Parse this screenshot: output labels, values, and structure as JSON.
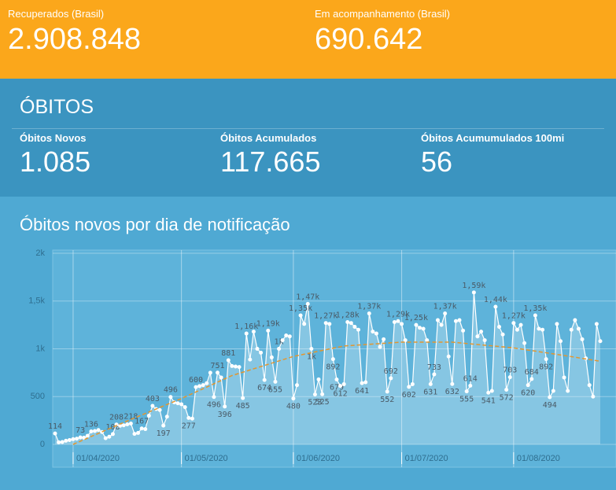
{
  "cards": [
    {
      "label": "Recuperados (Brasil)",
      "value": "2.908.848"
    },
    {
      "label": "Em acompanhamento (Brasil)",
      "value": "690.642"
    }
  ],
  "section": {
    "title": "ÓBITOS",
    "stats": [
      {
        "label": "Óbitos Novos",
        "value": "1.085"
      },
      {
        "label": "Óbitos Acumulados",
        "value": "117.665"
      },
      {
        "label": "Óbitos Acumumulados 100mi",
        "value": "56"
      }
    ]
  },
  "chart_data": {
    "type": "line",
    "title": "Óbitos novos por dia de notificação",
    "x": [
      "27/03/2020",
      "28/03/2020",
      "29/03/2020",
      "30/03/2020",
      "31/03/2020",
      "01/04/2020",
      "02/04/2020",
      "03/04/2020",
      "04/04/2020",
      "05/04/2020",
      "06/04/2020",
      "07/04/2020",
      "08/04/2020",
      "09/04/2020",
      "10/04/2020",
      "11/04/2020",
      "12/04/2020",
      "13/04/2020",
      "14/04/2020",
      "15/04/2020",
      "16/04/2020",
      "17/04/2020",
      "18/04/2020",
      "19/04/2020",
      "20/04/2020",
      "21/04/2020",
      "22/04/2020",
      "23/04/2020",
      "24/04/2020",
      "25/04/2020",
      "26/04/2020",
      "27/04/2020",
      "28/04/2020",
      "29/04/2020",
      "30/04/2020",
      "01/05/2020",
      "02/05/2020",
      "03/05/2020",
      "04/05/2020",
      "05/05/2020",
      "06/05/2020",
      "07/05/2020",
      "08/05/2020",
      "09/05/2020",
      "10/05/2020",
      "11/05/2020",
      "12/05/2020",
      "13/05/2020",
      "14/05/2020",
      "15/05/2020",
      "16/05/2020",
      "17/05/2020",
      "18/05/2020",
      "19/05/2020",
      "20/05/2020",
      "21/05/2020",
      "22/05/2020",
      "23/05/2020",
      "24/05/2020",
      "25/05/2020",
      "26/05/2020",
      "27/05/2020",
      "28/05/2020",
      "29/05/2020",
      "30/05/2020",
      "31/05/2020",
      "01/06/2020",
      "02/06/2020",
      "03/06/2020",
      "04/06/2020",
      "05/06/2020",
      "06/06/2020",
      "07/06/2020",
      "08/06/2020",
      "09/06/2020",
      "10/06/2020",
      "11/06/2020",
      "12/06/2020",
      "13/06/2020",
      "14/06/2020",
      "15/06/2020",
      "16/06/2020",
      "17/06/2020",
      "18/06/2020",
      "19/06/2020",
      "20/06/2020",
      "21/06/2020",
      "22/06/2020",
      "23/06/2020",
      "24/06/2020",
      "25/06/2020",
      "26/06/2020",
      "27/06/2020",
      "28/06/2020",
      "29/06/2020",
      "30/06/2020",
      "01/07/2020",
      "02/07/2020",
      "03/07/2020",
      "04/07/2020",
      "05/07/2020",
      "06/07/2020",
      "07/07/2020",
      "08/07/2020",
      "09/07/2020",
      "10/07/2020",
      "11/07/2020",
      "12/07/2020",
      "13/07/2020",
      "14/07/2020",
      "15/07/2020",
      "16/07/2020",
      "17/07/2020",
      "18/07/2020",
      "19/07/2020",
      "20/07/2020",
      "21/07/2020",
      "22/07/2020",
      "23/07/2020",
      "24/07/2020",
      "25/07/2020",
      "26/07/2020",
      "27/07/2020",
      "28/07/2020",
      "29/07/2020",
      "30/07/2020",
      "31/07/2020",
      "01/08/2020",
      "02/08/2020",
      "03/08/2020",
      "04/08/2020",
      "05/08/2020",
      "06/08/2020",
      "07/08/2020",
      "08/08/2020",
      "09/08/2020",
      "10/08/2020",
      "11/08/2020",
      "12/08/2020",
      "13/08/2020",
      "14/08/2020",
      "15/08/2020",
      "16/08/2020",
      "17/08/2020",
      "18/08/2020",
      "19/08/2020",
      "20/08/2020",
      "21/08/2020",
      "22/08/2020",
      "23/08/2020",
      "24/08/2020",
      "25/08/2020"
    ],
    "xlim": [
      "27/03/2020",
      "25/08/2020"
    ],
    "xticks": [
      "01/04/2020",
      "01/05/2020",
      "01/06/2020",
      "01/07/2020",
      "01/08/2020"
    ],
    "ylim": [
      0,
      2000
    ],
    "yticks": [
      0,
      500,
      {
        "value": 1000,
        "label": "1k"
      },
      {
        "value": 1500,
        "label": "1,5k"
      },
      {
        "value": 2000,
        "label": "2k"
      }
    ],
    "grid": true,
    "series": [
      {
        "color": "#ffffff",
        "area": true,
        "values": [
          114,
          22,
          25,
          38,
          45,
          55,
          60,
          73,
          70,
          90,
          136,
          140,
          150,
          130,
          65,
          80,
          108,
          208,
          195,
          200,
          210,
          218,
          110,
          120,
          167,
          160,
          300,
          403,
          370,
          360,
          197,
          290,
          496,
          440,
          430,
          420,
          390,
          277,
          270,
          600,
          610,
          620,
          640,
          750,
          496,
          751,
          700,
          396,
          881,
          820,
          815,
          810,
          485,
          1160,
          888,
          1180,
          1000,
          960,
          674,
          1190,
          910,
          655,
          1000,
          1090,
          1140,
          1130,
          480,
          620,
          1350,
          1260,
          1470,
          1000,
          523,
          680,
          525,
          1270,
          1260,
          892,
          679,
          612,
          630,
          1280,
          1270,
          1230,
          1200,
          641,
          650,
          1370,
          1180,
          1160,
          1020,
          1100,
          552,
          692,
          1280,
          1290,
          1260,
          1090,
          602,
          630,
          1250,
          1220,
          1210,
          1090,
          631,
          733,
          1300,
          1250,
          1370,
          920,
          632,
          1290,
          1300,
          1190,
          555,
          614,
          1590,
          1130,
          1180,
          1090,
          541,
          560,
          1440,
          1230,
          1150,
          572,
          703,
          1270,
          1200,
          1250,
          1060,
          620,
          684,
          1350,
          1210,
          1200,
          892,
          494,
          560,
          1260,
          1080,
          700,
          560,
          1200,
          1300,
          1210,
          1100,
          900,
          620,
          500,
          1260,
          1080
        ],
        "value_labels": [
          "114",
          null,
          null,
          null,
          null,
          null,
          null,
          "73",
          null,
          null,
          "136",
          null,
          null,
          null,
          null,
          null,
          "108",
          "208",
          null,
          null,
          null,
          "218",
          null,
          null,
          "167",
          null,
          null,
          "403",
          null,
          null,
          "197",
          null,
          "496",
          null,
          null,
          null,
          null,
          "277",
          null,
          "600",
          null,
          null,
          null,
          null,
          "496",
          "751",
          null,
          "396",
          "881",
          null,
          null,
          null,
          "485",
          "1,16k",
          null,
          null,
          null,
          null,
          "674",
          "1,19k",
          null,
          "655",
          "1k",
          null,
          null,
          null,
          "480",
          null,
          "1,35k",
          null,
          "1,47k",
          "1k",
          "523",
          null,
          "525",
          "1,27k",
          null,
          "892",
          "679",
          "612",
          null,
          "1,28k",
          null,
          null,
          null,
          "641",
          null,
          "1,37k",
          null,
          null,
          null,
          null,
          "552",
          "692",
          null,
          "1,29k",
          null,
          null,
          "602",
          null,
          "1,25k",
          null,
          null,
          null,
          "631",
          "733",
          null,
          null,
          "1,37k",
          null,
          "632",
          null,
          null,
          null,
          "555",
          "614",
          "1,59k",
          null,
          null,
          null,
          "541",
          null,
          "1,44k",
          null,
          null,
          "572",
          "703",
          "1,27k",
          null,
          null,
          null,
          "620",
          "684",
          "1,35k",
          null,
          null,
          "892",
          "494",
          null,
          null,
          null,
          null,
          null,
          null,
          null,
          null,
          null,
          null,
          null,
          null,
          null,
          null
        ]
      },
      {
        "color": "#e3962f",
        "dashed": true,
        "x": [
          "01/04/2020",
          "15/04/2020",
          "01/05/2020",
          "15/05/2020",
          "01/06/2020",
          "15/06/2020",
          "01/07/2020",
          "15/07/2020",
          "01/08/2020",
          "15/08/2020",
          "25/08/2020"
        ],
        "values": [
          0,
          230,
          480,
          720,
          920,
          1030,
          1070,
          1070,
          1010,
          930,
          870
        ]
      }
    ]
  }
}
